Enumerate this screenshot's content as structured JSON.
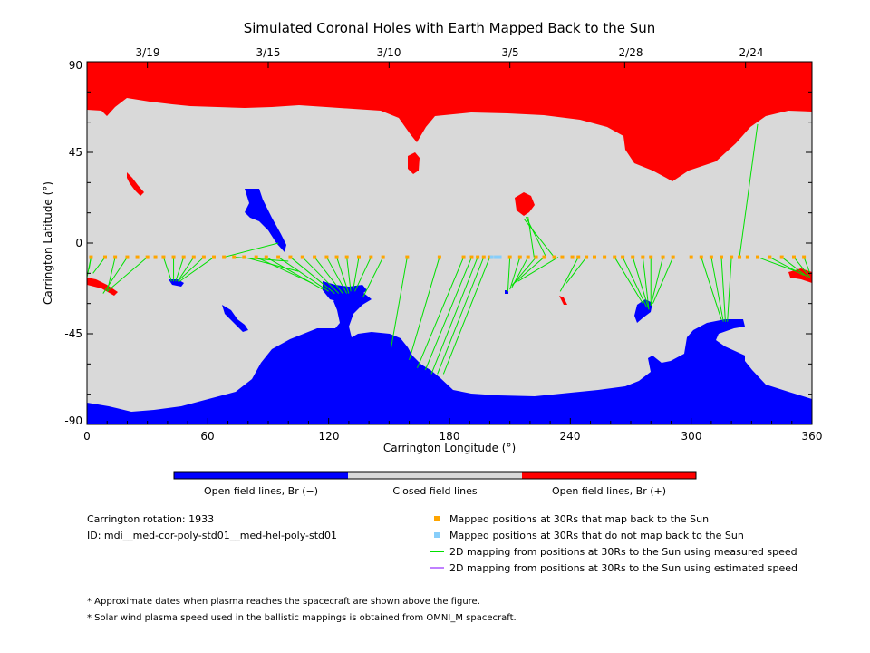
{
  "chart_data": {
    "type": "map",
    "title": "Simulated Coronal Holes with Earth Mapped Back to the Sun",
    "xlabel": "Carrington Longitude (°)",
    "ylabel": "Carrington Latitude (°)",
    "xlim": [
      0,
      360
    ],
    "ylim": [
      -90,
      90
    ],
    "x_ticks": [
      "0",
      "60",
      "120",
      "180",
      "240",
      "300",
      "360"
    ],
    "y_ticks": [
      "90",
      "45",
      "0",
      "-45",
      "-90"
    ],
    "top_axis": {
      "dates": [
        "3/19",
        "3/15",
        "3/10",
        "3/5",
        "2/28",
        "2/24"
      ],
      "longitudes": [
        30,
        90,
        150,
        210,
        267,
        327
      ]
    },
    "colors": {
      "open_negative": "#0000ff",
      "closed": "#d9d9d9",
      "open_positive": "#ff0000",
      "mapped_point": "#ffa500",
      "unmapped_point": "#87cefa",
      "measured_speed_line": "#00e000",
      "estimated_speed_line": "#c080ff"
    },
    "mapping_lines": [
      {
        "from": [
          2,
          -7
        ],
        "to": [
          1,
          -13
        ]
      },
      {
        "from": [
          2,
          -7
        ],
        "to": [
          0,
          -17
        ]
      },
      {
        "from": [
          9,
          -7
        ],
        "to": [
          3,
          -15
        ]
      },
      {
        "from": [
          14,
          -7
        ],
        "to": [
          10,
          -24
        ]
      },
      {
        "from": [
          20,
          -7
        ],
        "to": [
          8,
          -25
        ]
      },
      {
        "from": [
          30,
          -7
        ],
        "to": [
          10,
          -24
        ]
      },
      {
        "from": [
          38,
          -7
        ],
        "to": [
          42,
          -19
        ]
      },
      {
        "from": [
          43,
          -7
        ],
        "to": [
          43,
          -19
        ]
      },
      {
        "from": [
          48,
          -7
        ],
        "to": [
          44,
          -19
        ]
      },
      {
        "from": [
          53,
          -7
        ],
        "to": [
          45,
          -19
        ]
      },
      {
        "from": [
          58,
          -7
        ],
        "to": [
          45,
          -19
        ]
      },
      {
        "from": [
          63,
          -7
        ],
        "to": [
          46,
          -19
        ]
      },
      {
        "from": [
          68,
          -7
        ],
        "to": [
          95,
          0
        ]
      },
      {
        "from": [
          73,
          -7
        ],
        "to": [
          100,
          -9
        ]
      },
      {
        "from": [
          78,
          -7
        ],
        "to": [
          105,
          -14
        ]
      },
      {
        "from": [
          84,
          -7
        ],
        "to": [
          112,
          -20
        ]
      },
      {
        "from": [
          89,
          -7
        ],
        "to": [
          117,
          -23
        ]
      },
      {
        "from": [
          95,
          -7
        ],
        "to": [
          120,
          -24
        ]
      },
      {
        "from": [
          101,
          -7
        ],
        "to": [
          123,
          -25
        ]
      },
      {
        "from": [
          107,
          -7
        ],
        "to": [
          125,
          -25
        ]
      },
      {
        "from": [
          113,
          -7
        ],
        "to": [
          127,
          -25
        ]
      },
      {
        "from": [
          119,
          -7
        ],
        "to": [
          129,
          -25
        ]
      },
      {
        "from": [
          124,
          -7
        ],
        "to": [
          130,
          -25
        ]
      },
      {
        "from": [
          129,
          -7
        ],
        "to": [
          131,
          -24
        ]
      },
      {
        "from": [
          135,
          -7
        ],
        "to": [
          132,
          -24
        ]
      },
      {
        "from": [
          141,
          -7
        ],
        "to": [
          133,
          -24
        ]
      },
      {
        "from": [
          147,
          -7
        ],
        "to": [
          137,
          -27
        ]
      },
      {
        "from": [
          159,
          -7
        ],
        "to": [
          151,
          -52
        ]
      },
      {
        "from": [
          175,
          -7
        ],
        "to": [
          160,
          -58
        ]
      },
      {
        "from": [
          187,
          -7
        ],
        "to": [
          164,
          -62
        ]
      },
      {
        "from": [
          191,
          -7
        ],
        "to": [
          168,
          -63
        ]
      },
      {
        "from": [
          194,
          -7
        ],
        "to": [
          171,
          -65
        ]
      },
      {
        "from": [
          197,
          -7
        ],
        "to": [
          174,
          -65
        ]
      },
      {
        "from": [
          200,
          -7
        ],
        "to": [
          177,
          -65
        ]
      },
      {
        "from": [
          210,
          -7
        ],
        "to": [
          209,
          -24
        ]
      },
      {
        "from": [
          215,
          -7
        ],
        "to": [
          210,
          -23
        ]
      },
      {
        "from": [
          219,
          -7
        ],
        "to": [
          211,
          -22
        ]
      },
      {
        "from": [
          223,
          -7
        ],
        "to": [
          211,
          -21
        ]
      },
      {
        "from": [
          227,
          -7
        ],
        "to": [
          212,
          -20
        ]
      },
      {
        "from": [
          234,
          -7
        ],
        "to": [
          214,
          -19
        ]
      },
      {
        "from": [
          232,
          -7
        ],
        "to": [
          217,
          12
        ]
      },
      {
        "from": [
          228,
          -7
        ],
        "to": [
          218,
          13
        ]
      },
      {
        "from": [
          222,
          -7
        ],
        "to": [
          219,
          13
        ]
      },
      {
        "from": [
          244,
          -7
        ],
        "to": [
          235,
          -24
        ]
      },
      {
        "from": [
          248,
          -7
        ],
        "to": [
          238,
          -20
        ]
      },
      {
        "from": [
          262,
          -7
        ],
        "to": [
          276,
          -30
        ]
      },
      {
        "from": [
          266,
          -7
        ],
        "to": [
          278,
          -32
        ]
      },
      {
        "from": [
          271,
          -7
        ],
        "to": [
          279,
          -33
        ]
      },
      {
        "from": [
          276,
          -7
        ],
        "to": [
          279,
          -33
        ]
      },
      {
        "from": [
          280,
          -7
        ],
        "to": [
          280,
          -31
        ]
      },
      {
        "from": [
          286,
          -7
        ],
        "to": [
          280,
          -31
        ]
      },
      {
        "from": [
          291,
          -7
        ],
        "to": [
          281,
          -30
        ]
      },
      {
        "from": [
          305,
          -7
        ],
        "to": [
          315,
          -38
        ]
      },
      {
        "from": [
          310,
          -7
        ],
        "to": [
          316,
          -39
        ]
      },
      {
        "from": [
          315,
          -7
        ],
        "to": [
          317,
          -39
        ]
      },
      {
        "from": [
          320,
          -7
        ],
        "to": [
          318,
          -39
        ]
      },
      {
        "from": [
          324,
          -7
        ],
        "to": [
          333,
          59
        ]
      },
      {
        "from": [
          333,
          -7
        ],
        "to": [
          352,
          -14
        ]
      },
      {
        "from": [
          339,
          -7
        ],
        "to": [
          356,
          -16
        ]
      },
      {
        "from": [
          345,
          -7
        ],
        "to": [
          358,
          -17
        ]
      },
      {
        "from": [
          351,
          -7
        ],
        "to": [
          359,
          -17
        ]
      },
      {
        "from": [
          356,
          -7
        ],
        "to": [
          359,
          -15
        ]
      }
    ],
    "mapped_points": {
      "lat": -7,
      "lon": [
        2,
        9,
        14,
        20,
        25,
        30,
        34,
        38,
        43,
        48,
        53,
        58,
        63,
        68,
        73,
        78,
        84,
        89,
        95,
        101,
        107,
        113,
        119,
        124,
        129,
        135,
        141,
        147,
        159,
        175,
        187,
        191,
        194,
        197,
        200,
        210,
        215,
        219,
        223,
        227,
        232,
        236,
        241,
        244,
        248,
        252,
        257,
        262,
        266,
        271,
        276,
        280,
        286,
        291,
        300,
        305,
        310,
        315,
        320,
        324,
        328,
        333,
        339,
        345,
        351,
        356
      ]
    },
    "unmapped_points": {
      "lat": -7,
      "lon": [
        201,
        203,
        205
      ]
    }
  },
  "colorbar": {
    "labels": [
      "Open field lines, Br (−)",
      "Closed field lines",
      "Open field lines, Br (+)"
    ]
  },
  "info": {
    "rotation": "Carrington rotation: 1933",
    "id": "ID: mdi__med-cor-poly-std01__med-hel-poly-std01"
  },
  "legend": {
    "items": [
      "Mapped positions at 30Rs that map back to the Sun",
      "Mapped positions at 30Rs that do not map back to the Sun",
      "2D mapping from positions at 30Rs to the Sun using measured speed",
      "2D mapping from positions at 30Rs to the Sun using estimated speed"
    ]
  },
  "notes": [
    "* Approximate dates when plasma reaches the spacecraft are shown above the figure.",
    "* Solar wind plasma speed used in the ballistic mappings is obtained from OMNI_M spacecraft."
  ]
}
